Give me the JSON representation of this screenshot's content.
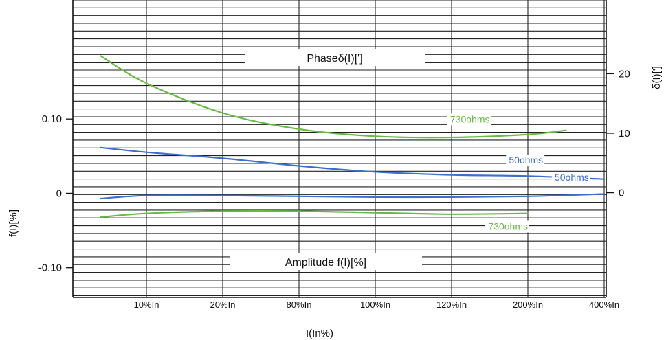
{
  "chart_data": {
    "type": "line",
    "x_categories": [
      "10%In",
      "20%In",
      "80%In",
      "100%In",
      "120%In",
      "200%In",
      "400%In"
    ],
    "xlabel": "I(In%)",
    "left_axis": {
      "label": "f(I)[%]",
      "range": [
        -0.14,
        0.26
      ],
      "ticks": [
        {
          "value": 0.1,
          "label": "0.10"
        },
        {
          "value": 0,
          "label": "0"
        },
        {
          "value": -0.1,
          "label": "-0.10"
        }
      ]
    },
    "right_axis": {
      "label": "δ(I)[']",
      "range": [
        -17.6,
        32.4
      ],
      "ticks": [
        {
          "value": 20,
          "label": "20"
        },
        {
          "value": 10,
          "label": "10"
        },
        {
          "value": 0,
          "label": "0"
        }
      ]
    },
    "sections": {
      "top_label": "Phaseδ(I)[']",
      "bottom_label": "Amplitude f(I)[%]"
    },
    "grid": true,
    "series": [
      {
        "name": "730ohms",
        "group": "phase",
        "axis": "right",
        "color": "#66bb44",
        "points": [
          [
            -0.6,
            23.0
          ],
          [
            0,
            18.4
          ],
          [
            1,
            13.4
          ],
          [
            2,
            10.7
          ],
          [
            3,
            9.5
          ],
          [
            4,
            9.3
          ],
          [
            5,
            9.8
          ],
          [
            5.5,
            10.5
          ]
        ]
      },
      {
        "name": "50ohms",
        "group": "phase",
        "axis": "right",
        "color": "#3a6fd0",
        "points": [
          [
            -0.6,
            7.6
          ],
          [
            0,
            6.8
          ],
          [
            1,
            5.8
          ],
          [
            2,
            4.5
          ],
          [
            3,
            3.5
          ],
          [
            4,
            3.0
          ],
          [
            5,
            2.8
          ],
          [
            6,
            2.3
          ]
        ]
      },
      {
        "name": "50ohms",
        "group": "amplitude",
        "axis": "left",
        "color": "#3a6fd0",
        "points": [
          [
            -0.6,
            -0.007
          ],
          [
            0,
            -0.003
          ],
          [
            1,
            -0.003
          ],
          [
            2,
            -0.004
          ],
          [
            3,
            -0.005
          ],
          [
            4,
            -0.005
          ],
          [
            5,
            -0.004
          ],
          [
            6,
            -0.001
          ]
        ]
      },
      {
        "name": "730ohms",
        "group": "amplitude",
        "axis": "left",
        "color": "#66bb44",
        "points": [
          [
            -0.6,
            -0.032
          ],
          [
            0,
            -0.027
          ],
          [
            1,
            -0.024
          ],
          [
            2,
            -0.024
          ],
          [
            3,
            -0.026
          ],
          [
            4,
            -0.028
          ],
          [
            5,
            -0.027
          ]
        ]
      }
    ],
    "series_labels": [
      {
        "text": "730ohms",
        "color": "#66bb44",
        "at": [
          4.5,
          11.8
        ],
        "axis": "right",
        "anchor": "end"
      },
      {
        "text": "50ohms",
        "color": "#3a6fd0",
        "at": [
          5.2,
          4.9
        ],
        "axis": "right",
        "anchor": "end"
      },
      {
        "text": "50ohms",
        "color": "#3a6fd0",
        "at": [
          5.8,
          0.017
        ],
        "axis": "left",
        "anchor": "end"
      },
      {
        "text": "730ohms",
        "color": "#66bb44",
        "at": [
          5.0,
          -0.049
        ],
        "axis": "left",
        "anchor": "end"
      }
    ]
  }
}
